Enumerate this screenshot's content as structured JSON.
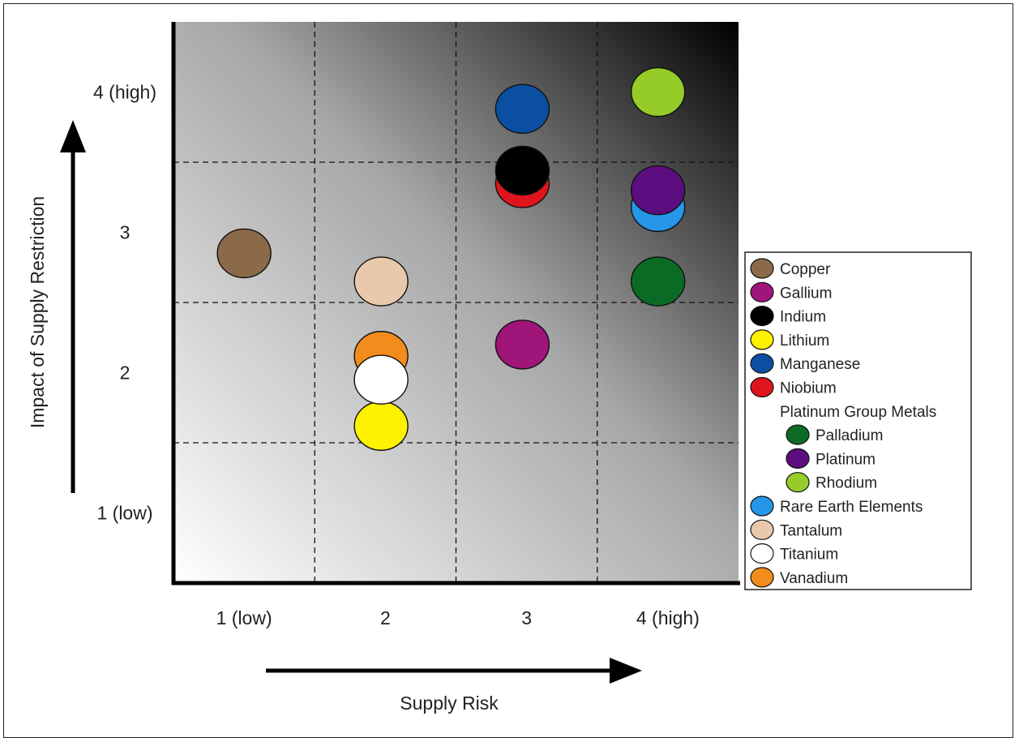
{
  "chart_data": {
    "type": "scatter",
    "title": "",
    "xlabel": "Supply Risk",
    "ylabel": "Impact of Supply Restriction",
    "x_ticks": [
      {
        "value": 1,
        "label": "1 (low)"
      },
      {
        "value": 2,
        "label": "2"
      },
      {
        "value": 3,
        "label": "3"
      },
      {
        "value": 4,
        "label": "4 (high)"
      }
    ],
    "y_ticks": [
      {
        "value": 1,
        "label": "1 (low)"
      },
      {
        "value": 2,
        "label": "2"
      },
      {
        "value": 3,
        "label": "3"
      },
      {
        "value": 4,
        "label": "4 (high)"
      }
    ],
    "xlim": [
      0.5,
      4.5
    ],
    "ylim": [
      0.5,
      4.5
    ],
    "grid": true,
    "legend_position": "right",
    "series": [
      {
        "name": "Copper",
        "color": "#8b6a4a",
        "points": [
          {
            "x": 1.0,
            "y": 2.85
          }
        ]
      },
      {
        "name": "Gallium",
        "color": "#a0157a",
        "points": [
          {
            "x": 2.97,
            "y": 2.2
          }
        ]
      },
      {
        "name": "Indium",
        "color": "#000000",
        "points": [
          {
            "x": 2.97,
            "y": 3.44
          }
        ]
      },
      {
        "name": "Lithium",
        "color": "#fff200",
        "points": [
          {
            "x": 1.97,
            "y": 1.62
          }
        ]
      },
      {
        "name": "Manganese",
        "color": "#0b4fa3",
        "points": [
          {
            "x": 2.97,
            "y": 3.88
          }
        ]
      },
      {
        "name": "Niobium",
        "color": "#e0141c",
        "points": [
          {
            "x": 2.97,
            "y": 3.35
          }
        ]
      },
      {
        "name": "Palladium",
        "color": "#0b6b24",
        "points": [
          {
            "x": 3.93,
            "y": 2.65
          }
        ]
      },
      {
        "name": "Platinum",
        "color": "#5c0d80",
        "points": [
          {
            "x": 3.93,
            "y": 3.3
          }
        ]
      },
      {
        "name": "Rhodium",
        "color": "#95cc2a",
        "points": [
          {
            "x": 3.93,
            "y": 4.0
          }
        ]
      },
      {
        "name": "Rare Earth Elements",
        "color": "#2596e8",
        "points": [
          {
            "x": 3.93,
            "y": 3.18
          }
        ]
      },
      {
        "name": "Tantalum",
        "color": "#e8c9ab",
        "points": [
          {
            "x": 1.97,
            "y": 2.65
          }
        ]
      },
      {
        "name": "Titanium",
        "color": "#ffffff",
        "points": [
          {
            "x": 1.97,
            "y": 1.95
          }
        ]
      },
      {
        "name": "Vanadium",
        "color": "#f28c1c",
        "points": [
          {
            "x": 1.97,
            "y": 2.12
          }
        ]
      }
    ],
    "legend": [
      {
        "label": "Copper",
        "series": "Copper",
        "indent": 0
      },
      {
        "label": "Gallium",
        "series": "Gallium",
        "indent": 0
      },
      {
        "label": "Indium",
        "series": "Indium",
        "indent": 0
      },
      {
        "label": "Lithium",
        "series": "Lithium",
        "indent": 0
      },
      {
        "label": "Manganese",
        "series": "Manganese",
        "indent": 0
      },
      {
        "label": "Niobium",
        "series": "Niobium",
        "indent": 0
      },
      {
        "label": "Platinum Group Metals",
        "series": null,
        "indent": 0
      },
      {
        "label": "Palladium",
        "series": "Palladium",
        "indent": 1
      },
      {
        "label": "Platinum",
        "series": "Platinum",
        "indent": 1
      },
      {
        "label": "Rhodium",
        "series": "Rhodium",
        "indent": 1
      },
      {
        "label": "Rare Earth Elements",
        "series": "Rare Earth Elements",
        "indent": 0
      },
      {
        "label": "Tantalum",
        "series": "Tantalum",
        "indent": 0
      },
      {
        "label": "Titanium",
        "series": "Titanium",
        "indent": 0
      },
      {
        "label": "Vanadium",
        "series": "Vanadium",
        "indent": 0
      }
    ]
  }
}
